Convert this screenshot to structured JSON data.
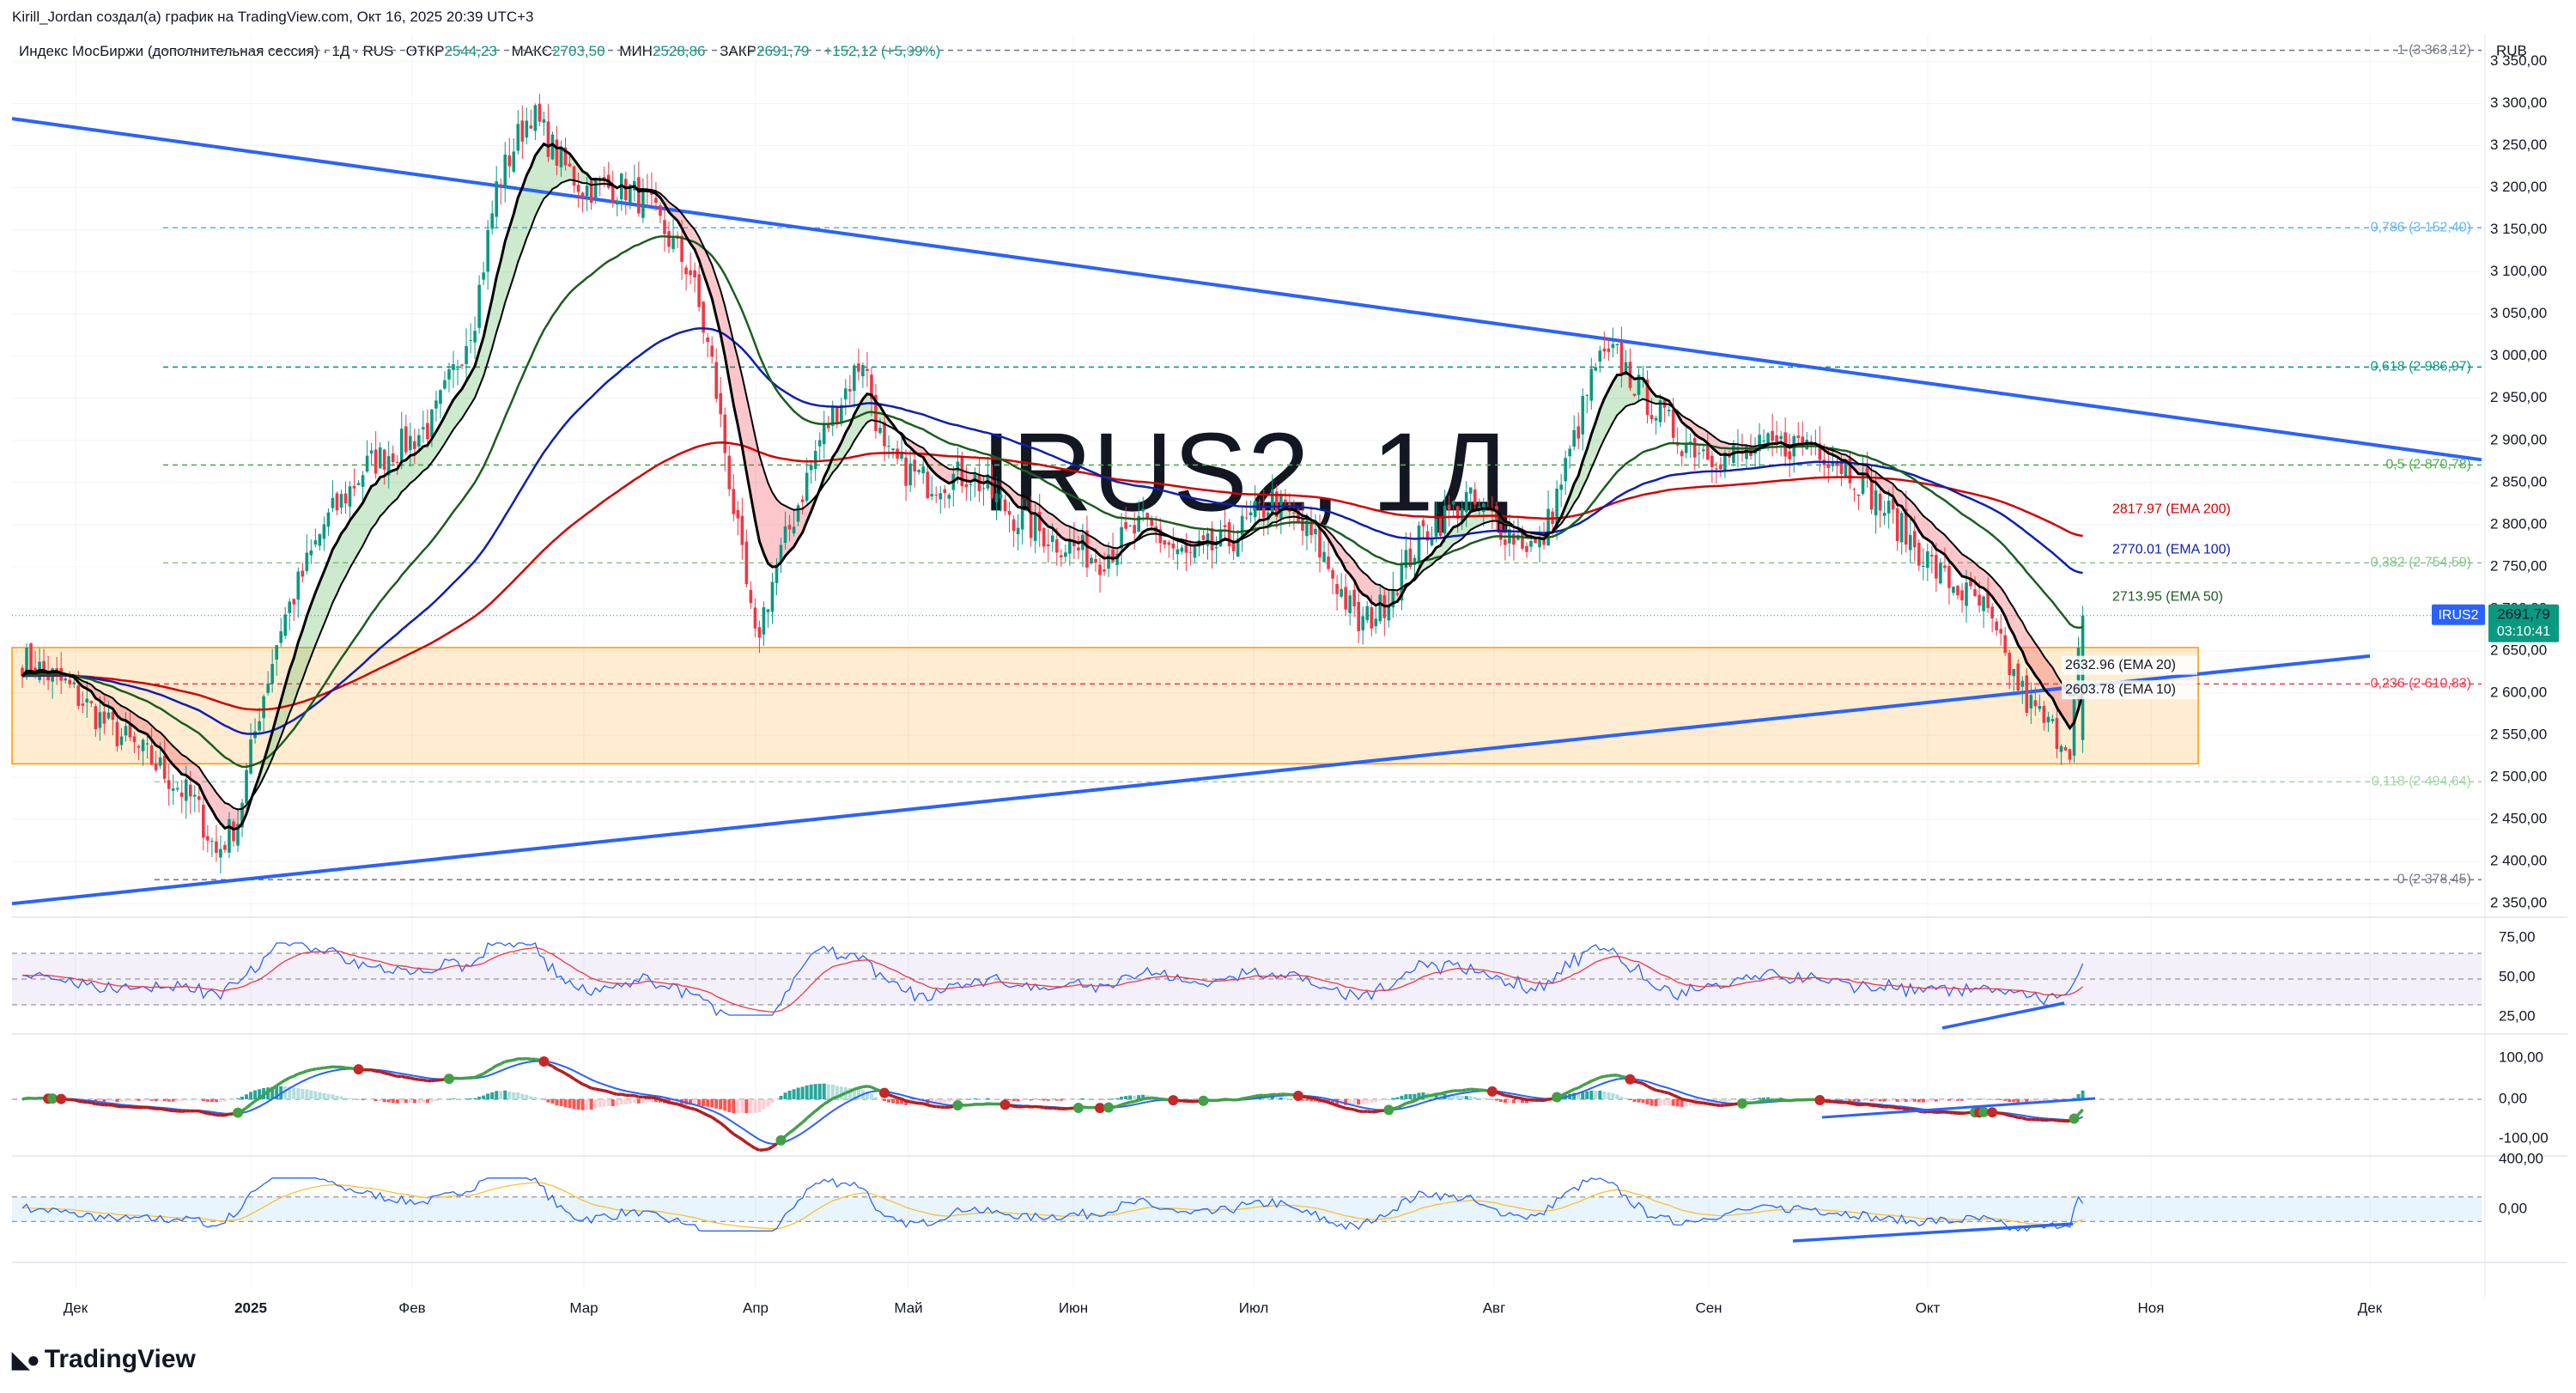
{
  "header": {
    "author": "Kirill_Jordan создал(а) график на TradingView.com, Окт 16, 2025 20:39 UTC+3",
    "symbol": "Индекс МосБиржи (дополнительная сессия) · 1Д · RUS",
    "open_label": "ОТКР",
    "open": "2544,23",
    "high_label": "МАКС",
    "high": "2703,50",
    "low_label": "МИН",
    "low": "2528,86",
    "close_label": "ЗАКР",
    "close": "2691,79",
    "change": "+152,12 (+5,99%)"
  },
  "currency": "RUB",
  "watermark": "IRUS2, 1Д",
  "price_badge": {
    "symbol": "IRUS2",
    "price": "2691,79",
    "timer": "03:10:41"
  },
  "brand": "TradingView",
  "colors": {
    "up": "#089981",
    "down": "#f23645",
    "trendline": "#2962ff",
    "ema10": "#000000",
    "ema20": "#000000",
    "ema50": "#1b5e20",
    "ema100": "#0d1fb5",
    "ema200": "#d50000",
    "zone": "#ff9800"
  },
  "chart_data": [
    {
      "type": "candlestick",
      "x_axis": {
        "ticks": [
          "Дек",
          "2025",
          "Фев",
          "Мар",
          "Апр",
          "Май",
          "Июн",
          "Июл",
          "Авг",
          "Сен",
          "Окт",
          "Ноя",
          "Дек"
        ]
      },
      "y_axis": {
        "range": [
          2340,
          3380
        ],
        "ticks": [
          "3 350,00",
          "3 300,00",
          "3 250,00",
          "3 200,00",
          "3 150,00",
          "3 100,00",
          "3 050,00",
          "3 000,00",
          "2 950,00",
          "2 900,00",
          "2 850,00",
          "2 800,00",
          "2 750,00",
          "2 700,00",
          "2 650,00",
          "2 600,00",
          "2 550,00",
          "2 500,00",
          "2 450,00",
          "2 400,00",
          "2 350,00"
        ]
      },
      "close_path_approx": [
        [
          0,
          2640
        ],
        [
          10,
          2610
        ],
        [
          20,
          2560
        ],
        [
          30,
          2520
        ],
        [
          40,
          2470
        ],
        [
          45,
          2410
        ],
        [
          50,
          2450
        ],
        [
          55,
          2580
        ],
        [
          60,
          2680
        ],
        [
          70,
          2800
        ],
        [
          80,
          2870
        ],
        [
          90,
          2900
        ],
        [
          95,
          2920
        ],
        [
          100,
          2980
        ],
        [
          105,
          3050
        ],
        [
          110,
          3200
        ],
        [
          115,
          3260
        ],
        [
          118,
          3290
        ],
        [
          125,
          3230
        ],
        [
          130,
          3200
        ],
        [
          140,
          3200
        ],
        [
          145,
          3180
        ],
        [
          155,
          3100
        ],
        [
          160,
          2990
        ],
        [
          165,
          2820
        ],
        [
          170,
          2660
        ],
        [
          175,
          2750
        ],
        [
          185,
          2900
        ],
        [
          195,
          3000
        ],
        [
          200,
          2880
        ],
        [
          210,
          2850
        ],
        [
          220,
          2860
        ],
        [
          230,
          2810
        ],
        [
          240,
          2780
        ],
        [
          250,
          2760
        ],
        [
          260,
          2800
        ],
        [
          270,
          2760
        ],
        [
          280,
          2780
        ],
        [
          290,
          2830
        ],
        [
          300,
          2780
        ],
        [
          310,
          2680
        ],
        [
          315,
          2700
        ],
        [
          325,
          2790
        ],
        [
          335,
          2830
        ],
        [
          345,
          2790
        ],
        [
          352,
          2770
        ],
        [
          360,
          2900
        ],
        [
          365,
          2990
        ],
        [
          370,
          3000
        ],
        [
          375,
          2960
        ],
        [
          385,
          2900
        ],
        [
          395,
          2880
        ],
        [
          405,
          2890
        ],
        [
          415,
          2900
        ],
        [
          425,
          2860
        ],
        [
          435,
          2800
        ],
        [
          445,
          2740
        ],
        [
          455,
          2700
        ],
        [
          460,
          2640
        ],
        [
          465,
          2590
        ],
        [
          470,
          2560
        ],
        [
          475,
          2540
        ],
        [
          478,
          2692
        ]
      ],
      "fibonacci": [
        {
          "label": "1 (3 363,12)",
          "value": 3363.12
        },
        {
          "label": "0,786 (3 152,40)",
          "value": 3152.4
        },
        {
          "label": "0,618 (2 986,97)",
          "value": 2986.97
        },
        {
          "label": "0,5 (2 870,78)",
          "value": 2870.78
        },
        {
          "label": "0,382 (2 754,59)",
          "value": 2754.59
        },
        {
          "label": "0,236 (2 610,83)",
          "value": 2610.83
        },
        {
          "label": "0,118 (2 494,64)",
          "value": 2494.64
        },
        {
          "label": "0 (2 378,45)",
          "value": 2378.45
        }
      ],
      "ema_labels": [
        {
          "name": "EMA 200",
          "label": "2817.97 (EMA 200)",
          "value": 2817.97
        },
        {
          "name": "EMA 100",
          "label": "2770.01 (EMA 100)",
          "value": 2770.01
        },
        {
          "name": "EMA 50",
          "label": "2713.95 (EMA 50)",
          "value": 2713.95
        },
        {
          "name": "EMA 20",
          "label": "2632.96 (EMA 20)",
          "value": 2632.96
        },
        {
          "name": "EMA 10",
          "label": "2603.78 (EMA 10)",
          "value": 2603.78
        }
      ],
      "support_zone": [
        2516,
        2654
      ]
    },
    {
      "type": "line",
      "panel": "rsi",
      "ticks": [
        "75,00",
        "50,00",
        "25,00"
      ],
      "band": [
        30,
        70
      ]
    },
    {
      "type": "line",
      "panel": "macd",
      "ticks": [
        "100,00",
        "0,00",
        "-100,00"
      ]
    },
    {
      "type": "line",
      "panel": "oscillator",
      "ticks": [
        "400,00",
        "0,00"
      ]
    }
  ]
}
